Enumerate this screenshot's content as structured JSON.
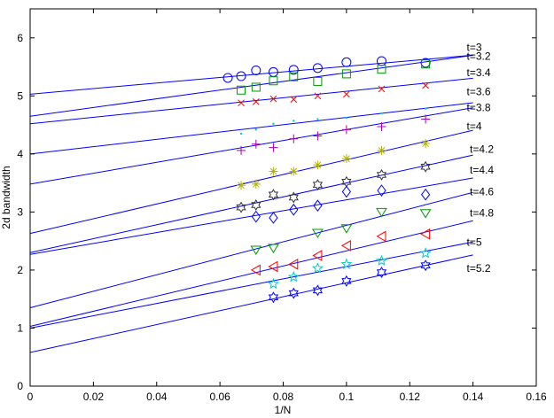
{
  "chart_data": {
    "type": "scatter",
    "title": "",
    "xlabel": "1/N",
    "ylabel": "2d bandwidth",
    "xlim": [
      0,
      0.16
    ],
    "ylim": [
      0,
      6.5
    ],
    "xticks": [
      0,
      0.02,
      0.04,
      0.06,
      0.08,
      0.1,
      0.12,
      0.14,
      0.16
    ],
    "yticks": [
      0,
      1,
      2,
      3,
      4,
      5,
      6
    ],
    "grid": false,
    "legend": "none",
    "fit_line_color": "#0000ff",
    "series": [
      {
        "name": "t=3",
        "marker": "circle",
        "color": "#0000ff",
        "x": [
          0.0625,
          0.0667,
          0.0714,
          0.0769,
          0.0833,
          0.0909,
          0.1,
          0.1111,
          0.125
        ],
        "y": [
          5.31,
          5.34,
          5.44,
          5.41,
          5.45,
          5.48,
          5.58,
          5.6,
          5.57
        ],
        "fit": [
          5.03,
          4.8
        ]
      },
      {
        "name": "t=3.2",
        "marker": "square",
        "color": "#009900",
        "x": [
          0.0667,
          0.0714,
          0.0769,
          0.0833,
          0.0909,
          0.1,
          0.1111,
          0.125
        ],
        "y": [
          5.1,
          5.15,
          5.26,
          5.33,
          5.25,
          5.38,
          5.46,
          5.55
        ],
        "fit": [
          4.65,
          7.5
        ]
      },
      {
        "name": "t=3.4",
        "marker": "x",
        "color": "#ff0000",
        "x": [
          0.0667,
          0.0714,
          0.0769,
          0.0833,
          0.0909,
          0.1,
          0.1111,
          0.125
        ],
        "y": [
          4.88,
          4.9,
          4.95,
          4.94,
          5.0,
          5.03,
          5.12,
          5.18
        ],
        "fit": [
          4.52,
          5.6
        ]
      },
      {
        "name": "t=3.6",
        "marker": "dot",
        "color": "#00cccc",
        "x": [
          0.0667,
          0.0714,
          0.0769,
          0.0833,
          0.0909,
          0.1,
          0.1111,
          0.125
        ],
        "y": [
          4.35,
          4.42,
          4.52,
          4.57,
          4.6,
          4.62,
          4.7,
          4.78
        ],
        "fit": [
          4.0,
          6.3
        ]
      },
      {
        "name": "t=3.8",
        "marker": "plus",
        "color": "#aa00aa",
        "x": [
          0.0667,
          0.0714,
          0.0769,
          0.0833,
          0.0909,
          0.1,
          0.1111,
          0.125
        ],
        "y": [
          4.06,
          4.17,
          4.11,
          4.26,
          4.31,
          4.42,
          4.47,
          4.6
        ],
        "fit": [
          3.48,
          9.4
        ]
      },
      {
        "name": "t=4",
        "marker": "asterisk",
        "color": "#b3b300",
        "x": [
          0.0667,
          0.0714,
          0.0769,
          0.0833,
          0.0909,
          0.1,
          0.1111,
          0.125
        ],
        "y": [
          3.46,
          3.48,
          3.7,
          3.7,
          3.81,
          3.92,
          4.06,
          4.18
        ],
        "fit": [
          2.63,
          12.7
        ]
      },
      {
        "name": "t=4.2",
        "marker": "hexagram",
        "color": "#333333",
        "x": [
          0.0667,
          0.0714,
          0.0769,
          0.0833,
          0.0909,
          0.1,
          0.1111,
          0.125
        ],
        "y": [
          3.08,
          3.12,
          3.3,
          3.25,
          3.47,
          3.52,
          3.64,
          3.78
        ],
        "fit": [
          2.3,
          12.0
        ]
      },
      {
        "name": "t=4.4",
        "marker": "diamond",
        "color": "#0000ff",
        "x": [
          0.0714,
          0.0769,
          0.0833,
          0.0909,
          0.1,
          0.1111,
          0.125
        ],
        "y": [
          2.92,
          2.9,
          3.04,
          3.11,
          3.35,
          3.37,
          3.3
        ],
        "fit": [
          2.27,
          9.4
        ]
      },
      {
        "name": "t=4.6",
        "marker": "triangle-down",
        "color": "#009900",
        "x": [
          0.0714,
          0.0769,
          0.0909,
          0.1,
          0.1111,
          0.125
        ],
        "y": [
          2.35,
          2.38,
          2.64,
          2.72,
          3.0,
          2.98
        ],
        "fit": [
          1.35,
          14.2
        ]
      },
      {
        "name": "t=4.8",
        "marker": "triangle-left",
        "color": "#ff0000",
        "x": [
          0.0714,
          0.0769,
          0.0833,
          0.0909,
          0.1,
          0.1111,
          0.125
        ],
        "y": [
          2.0,
          2.06,
          2.1,
          2.25,
          2.42,
          2.58,
          2.62
        ],
        "fit": [
          1.03,
          13.0
        ]
      },
      {
        "name": "t=5",
        "marker": "pentagram",
        "color": "#00cccc",
        "x": [
          0.0769,
          0.0833,
          0.0909,
          0.1,
          0.1111,
          0.125
        ],
        "y": [
          1.76,
          1.88,
          2.03,
          2.1,
          2.16,
          2.29
        ],
        "fit": [
          1.0,
          10.6
        ]
      },
      {
        "name": "t=5.2",
        "marker": "hexagram",
        "color": "#0000ff",
        "x": [
          0.0769,
          0.0833,
          0.0909,
          0.1,
          0.1111,
          0.125
        ],
        "y": [
          1.53,
          1.6,
          1.65,
          1.81,
          1.96,
          2.08
        ],
        "fit": [
          0.58,
          12.0
        ]
      }
    ],
    "label_positions_data": [
      [
        0.138,
        5.84
      ],
      [
        0.138,
        5.68
      ],
      [
        0.138,
        5.4
      ],
      [
        0.138,
        5.07
      ],
      [
        0.138,
        4.8
      ],
      [
        0.138,
        4.48
      ],
      [
        0.139,
        4.08
      ],
      [
        0.139,
        3.72
      ],
      [
        0.139,
        3.35
      ],
      [
        0.139,
        2.98
      ],
      [
        0.138,
        2.48
      ],
      [
        0.138,
        2.03
      ]
    ]
  }
}
